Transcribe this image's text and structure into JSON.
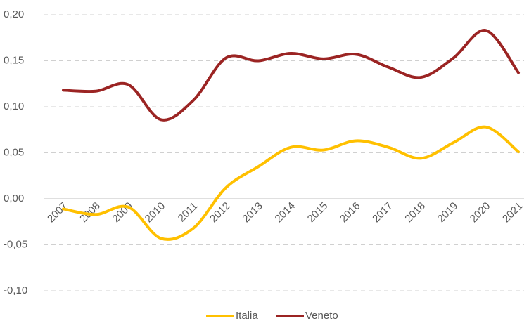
{
  "chart_data": {
    "type": "line",
    "categories": [
      "2007",
      "2008",
      "2009",
      "2010",
      "2011",
      "2012",
      "2013",
      "2014",
      "2015",
      "2016",
      "2017",
      "2018",
      "2019",
      "2020",
      "2021"
    ],
    "series": [
      {
        "name": "Italia",
        "color": "#ffc000",
        "values": [
          -0.011,
          -0.017,
          -0.009,
          -0.043,
          -0.032,
          0.012,
          0.035,
          0.056,
          0.053,
          0.063,
          0.056,
          0.044,
          0.061,
          0.078,
          0.051
        ]
      },
      {
        "name": "Veneto",
        "color": "#9b2423",
        "values": [
          0.118,
          0.117,
          0.124,
          0.086,
          0.107,
          0.153,
          0.15,
          0.158,
          0.152,
          0.157,
          0.143,
          0.132,
          0.153,
          0.183,
          0.137
        ]
      }
    ],
    "ylim": [
      -0.1,
      0.2
    ],
    "yticks": [
      {
        "value": -0.1,
        "label": "-0,10"
      },
      {
        "value": -0.05,
        "label": "-0,05"
      },
      {
        "value": 0,
        "label": "0,00"
      },
      {
        "value": 0.05,
        "label": "0,05"
      },
      {
        "value": 0.1,
        "label": "0,10"
      },
      {
        "value": 0.15,
        "label": "0,15"
      },
      {
        "value": 0.2,
        "label": "0,20"
      }
    ],
    "grid": true,
    "legend": "bottom"
  }
}
